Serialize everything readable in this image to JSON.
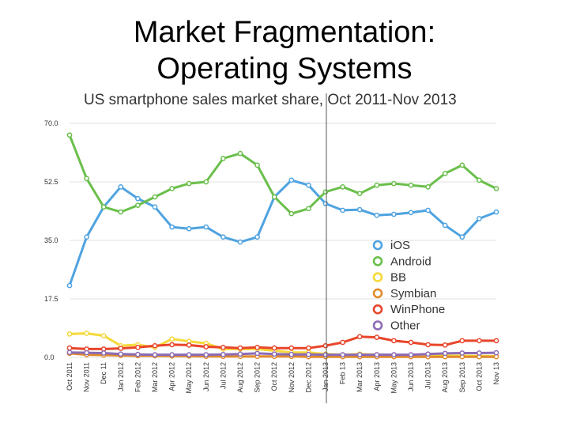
{
  "slide": {
    "title_line1": "Market Fragmentation:",
    "title_line2": "Operating Systems"
  },
  "chart_data": {
    "type": "line",
    "title": "US smartphone sales market share, Oct 2011-Nov 2013",
    "xlabel": "",
    "ylabel": "",
    "ylim": [
      0,
      70
    ],
    "yticks": [
      "0.0",
      "17.5",
      "35.0",
      "52.5",
      "70.0"
    ],
    "ytick_values": [
      0,
      17.5,
      35,
      52.5,
      70
    ],
    "categories": [
      "Oct 2011",
      "Nov 2011",
      "Dec 11",
      "Jan 2012",
      "Feb 2012",
      "Mar 2012",
      "Apr 2012",
      "May 2012",
      "Jun 2012",
      "Jul 2012",
      "Aug 2012",
      "Sep 2012",
      "Oct 2012",
      "Nov 2012",
      "Dec 2012",
      "Jan 2013",
      "Feb 13",
      "Mar 2013",
      "Apr 2013",
      "May 2013",
      "Jun 2013",
      "Jul 2013",
      "Aug 2013",
      "Sep 2013",
      "Oct 2013",
      "Nov 13"
    ],
    "marker_category": "Jan 2013",
    "legend_position": "center-right",
    "series": [
      {
        "name": "iOS",
        "color": "#4fa3e0",
        "values": [
          21.5,
          36.0,
          45.0,
          51.0,
          47.5,
          45.0,
          39.0,
          38.5,
          39.0,
          36.0,
          34.5,
          36.0,
          48.0,
          53.0,
          51.5,
          46.0,
          44.0,
          44.2,
          42.5,
          42.8,
          43.3,
          44.0,
          39.5,
          36.0,
          41.5,
          43.5
        ]
      },
      {
        "name": "Android",
        "color": "#6abf4b",
        "values": [
          66.5,
          53.5,
          45.0,
          43.5,
          45.5,
          48.0,
          50.5,
          52.0,
          52.5,
          59.5,
          61.0,
          57.5,
          48.0,
          43.0,
          44.5,
          49.5,
          51.0,
          49.0,
          51.5,
          52.0,
          51.5,
          51.0,
          55.0,
          57.5,
          53.0,
          50.5
        ]
      },
      {
        "name": "BB",
        "color": "#f5d93a",
        "values": [
          7.0,
          7.2,
          6.5,
          3.5,
          3.8,
          3.0,
          5.5,
          4.8,
          4.2,
          2.5,
          2.5,
          2.5,
          2.0,
          1.5,
          1.5,
          1.0,
          0.8,
          1.0,
          0.8,
          0.7,
          0.6,
          0.6,
          0.5,
          0.5,
          0.4,
          0.4
        ]
      },
      {
        "name": "Symbian",
        "color": "#e08a2c",
        "values": [
          1.2,
          0.8,
          0.7,
          0.6,
          0.5,
          0.5,
          0.4,
          0.4,
          0.3,
          0.3,
          0.3,
          0.3,
          0.3,
          0.3,
          0.2,
          0.2,
          0.2,
          0.2,
          0.2,
          0.2,
          0.2,
          0.2,
          0.2,
          0.2,
          0.2,
          0.2
        ]
      },
      {
        "name": "WinPhone",
        "color": "#e8452a",
        "values": [
          2.8,
          2.5,
          2.5,
          2.7,
          3.0,
          3.5,
          3.8,
          3.7,
          3.2,
          3.0,
          2.8,
          3.0,
          2.8,
          2.8,
          2.8,
          3.5,
          4.5,
          6.2,
          6.0,
          5.0,
          4.5,
          3.8,
          3.7,
          5.0,
          5.0,
          5.0
        ]
      },
      {
        "name": "Other",
        "color": "#8b6bb5",
        "values": [
          1.5,
          1.4,
          1.3,
          1.0,
          0.9,
          0.8,
          0.8,
          0.8,
          0.8,
          0.9,
          1.0,
          1.2,
          1.0,
          0.9,
          0.9,
          0.8,
          0.8,
          0.8,
          0.8,
          0.8,
          0.8,
          1.0,
          1.2,
          1.3,
          1.3,
          1.4
        ]
      }
    ]
  }
}
